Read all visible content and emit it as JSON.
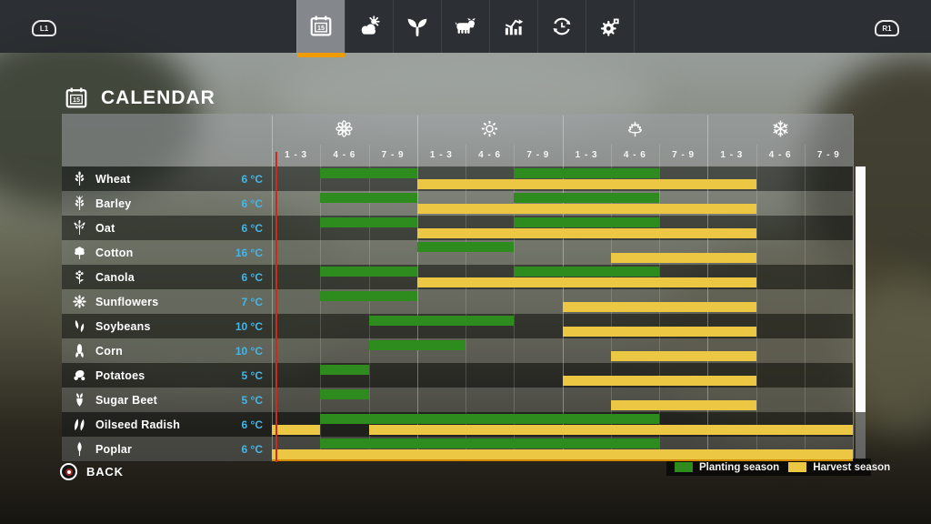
{
  "topbar": {
    "l1_label": "L1",
    "r1_label": "R1",
    "tabs": [
      {
        "name": "calendar",
        "icon": "calendar-icon",
        "active": true
      },
      {
        "name": "weather",
        "icon": "weather-icon",
        "active": false
      },
      {
        "name": "crops",
        "icon": "seedling-icon",
        "active": false
      },
      {
        "name": "animals",
        "icon": "cow-icon",
        "active": false
      },
      {
        "name": "statistics",
        "icon": "chart-icon",
        "active": false
      },
      {
        "name": "cycles",
        "icon": "cycle-icon",
        "active": false
      },
      {
        "name": "settings",
        "icon": "gear-icon",
        "active": false
      }
    ]
  },
  "page": {
    "title": "CALENDAR"
  },
  "calendar": {
    "seasons": [
      {
        "name": "spring",
        "icon": "flower-icon",
        "periods": [
          "1 - 3",
          "4 - 6",
          "7 - 9"
        ]
      },
      {
        "name": "summer",
        "icon": "sun-icon",
        "periods": [
          "1 - 3",
          "4 - 6",
          "7 - 9"
        ]
      },
      {
        "name": "autumn",
        "icon": "leaf-icon",
        "periods": [
          "1 - 3",
          "4 - 6",
          "7 - 9"
        ]
      },
      {
        "name": "winter",
        "icon": "snowflake-icon",
        "periods": [
          "1 - 3",
          "4 - 6",
          "7 - 9"
        ]
      }
    ],
    "crops": [
      {
        "name": "Wheat",
        "icon": "wheat-icon",
        "germination_temp": "6 °C",
        "planting_cols": [
          [
            2,
            3
          ],
          [
            6,
            8
          ]
        ],
        "harvest_cols": [
          [
            4,
            10
          ]
        ]
      },
      {
        "name": "Barley",
        "icon": "barley-icon",
        "germination_temp": "6 °C",
        "planting_cols": [
          [
            2,
            3
          ],
          [
            6,
            8
          ]
        ],
        "harvest_cols": [
          [
            4,
            10
          ]
        ]
      },
      {
        "name": "Oat",
        "icon": "oat-icon",
        "germination_temp": "6 °C",
        "planting_cols": [
          [
            2,
            3
          ],
          [
            6,
            8
          ]
        ],
        "harvest_cols": [
          [
            4,
            10
          ]
        ]
      },
      {
        "name": "Cotton",
        "icon": "cotton-icon",
        "germination_temp": "16 °C",
        "planting_cols": [
          [
            4,
            5
          ]
        ],
        "harvest_cols": [
          [
            8,
            10
          ]
        ]
      },
      {
        "name": "Canola",
        "icon": "canola-icon",
        "germination_temp": "6 °C",
        "planting_cols": [
          [
            2,
            3
          ],
          [
            6,
            8
          ]
        ],
        "harvest_cols": [
          [
            4,
            10
          ]
        ]
      },
      {
        "name": "Sunflowers",
        "icon": "sunflower-icon",
        "germination_temp": "7 °C",
        "planting_cols": [
          [
            2,
            3
          ]
        ],
        "harvest_cols": [
          [
            7,
            10
          ]
        ]
      },
      {
        "name": "Soybeans",
        "icon": "soybean-icon",
        "germination_temp": "10 °C",
        "planting_cols": [
          [
            3,
            5
          ]
        ],
        "harvest_cols": [
          [
            7,
            10
          ]
        ]
      },
      {
        "name": "Corn",
        "icon": "corn-icon",
        "germination_temp": "10 °C",
        "planting_cols": [
          [
            3,
            4
          ]
        ],
        "harvest_cols": [
          [
            8,
            10
          ]
        ]
      },
      {
        "name": "Potatoes",
        "icon": "potato-icon",
        "germination_temp": "5 °C",
        "planting_cols": [
          [
            2,
            2
          ]
        ],
        "harvest_cols": [
          [
            7,
            10
          ]
        ]
      },
      {
        "name": "Sugar Beet",
        "icon": "sugar-beet-icon",
        "germination_temp": "5 °C",
        "planting_cols": [
          [
            2,
            2
          ]
        ],
        "harvest_cols": [
          [
            8,
            10
          ]
        ]
      },
      {
        "name": "Oilseed Radish",
        "icon": "oilseed-radish-icon",
        "germination_temp": "6 °C",
        "planting_cols": [
          [
            2,
            8
          ]
        ],
        "harvest_cols": [
          [
            1,
            1
          ],
          [
            3,
            12
          ]
        ]
      },
      {
        "name": "Poplar",
        "icon": "poplar-icon",
        "germination_temp": "6 °C",
        "planting_cols": [
          [
            2,
            8
          ]
        ],
        "harvest_cols": [
          [
            1,
            12
          ]
        ]
      }
    ],
    "legend": {
      "planting_label": "Planting season",
      "harvest_label": "Harvest season"
    },
    "colors": {
      "planting": "#2e8b1e",
      "harvest": "#ebc743",
      "accent": "#f09c00",
      "temp_text": "#45b5e8",
      "current_day_line": "#d2281c"
    },
    "current_day_column": 1
  },
  "footer": {
    "back_label": "BACK"
  }
}
